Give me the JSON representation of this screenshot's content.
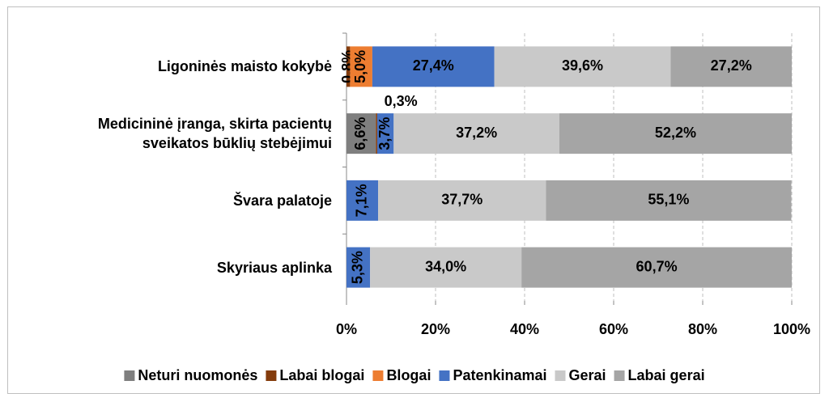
{
  "chart_data": {
    "type": "stacked-bar-horizontal",
    "categories": [
      "Ligoninės maisto kokybė",
      "Medicininė įranga, skirta pacientų sveikatos būklių stebėjimui",
      "Švara palatoje",
      "Skyriaus aplinka"
    ],
    "series": [
      {
        "name": "Neturi nuomonės",
        "color": "#7f7f7f",
        "values": [
          null,
          6.6,
          null,
          null
        ],
        "value_labels": [
          null,
          "6,6%",
          null,
          null
        ]
      },
      {
        "name": "Labai blogai",
        "color": "#843c0c",
        "values": [
          0.8,
          0.3,
          null,
          null
        ],
        "value_labels": [
          "0,8%",
          "0,3%",
          null,
          null
        ]
      },
      {
        "name": "Blogai",
        "color": "#ed7d31",
        "values": [
          5.0,
          null,
          null,
          null
        ],
        "value_labels": [
          "5,0%",
          null,
          null,
          null
        ]
      },
      {
        "name": "Patenkinamai",
        "color": "#4472c4",
        "values": [
          27.4,
          3.7,
          7.1,
          5.3
        ],
        "value_labels": [
          "27,4%",
          "3,7%",
          "7,1%",
          "5,3%"
        ]
      },
      {
        "name": "Gerai",
        "color": "#c9c9c9",
        "values": [
          39.6,
          37.2,
          37.7,
          34.0
        ],
        "value_labels": [
          "39,6%",
          "37,2%",
          "37,7%",
          "34,0%"
        ]
      },
      {
        "name": "Labai gerai",
        "color": "#a5a5a5",
        "values": [
          27.2,
          52.2,
          55.1,
          60.7
        ],
        "value_labels": [
          "27,2%",
          "52,2%",
          "55,1%",
          "60,7%"
        ]
      }
    ],
    "xlim": [
      0,
      100
    ],
    "xticks": [
      {
        "value": 0,
        "label": "0%"
      },
      {
        "value": 20,
        "label": "20%"
      },
      {
        "value": 40,
        "label": "40%"
      },
      {
        "value": 60,
        "label": "60%"
      },
      {
        "value": 80,
        "label": "80%"
      },
      {
        "value": 100,
        "label": "100%"
      }
    ],
    "grid": true,
    "legend": "bottom"
  }
}
